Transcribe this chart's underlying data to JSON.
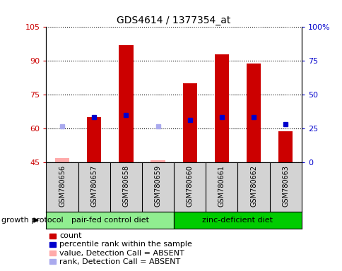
{
  "title": "GDS4614 / 1377354_at",
  "samples": [
    "GSM780656",
    "GSM780657",
    "GSM780658",
    "GSM780659",
    "GSM780660",
    "GSM780661",
    "GSM780662",
    "GSM780663"
  ],
  "count_values": [
    null,
    65,
    97,
    null,
    80,
    93,
    89,
    59
  ],
  "count_absent": [
    47,
    null,
    null,
    46,
    null,
    null,
    null,
    null
  ],
  "rank_values": [
    null,
    65,
    66,
    null,
    64,
    65,
    65,
    62
  ],
  "rank_absent": [
    61,
    null,
    null,
    61,
    null,
    null,
    null,
    null
  ],
  "ylim": [
    45,
    105
  ],
  "yticks": [
    45,
    60,
    75,
    90,
    105
  ],
  "ytick_labels": [
    "45",
    "60",
    "75",
    "90",
    "105"
  ],
  "y2lim": [
    0,
    100
  ],
  "y2ticks": [
    0,
    25,
    50,
    75,
    100
  ],
  "y2tick_labels": [
    "0",
    "25",
    "50",
    "75",
    "100%"
  ],
  "group1_label": "pair-fed control diet",
  "group2_label": "zinc-deficient diet",
  "group1_indices": [
    0,
    1,
    2,
    3
  ],
  "group2_indices": [
    4,
    5,
    6,
    7
  ],
  "bar_width": 0.45,
  "count_color": "#cc0000",
  "rank_color": "#0000cc",
  "count_absent_color": "#ffaaaa",
  "rank_absent_color": "#aaaaee",
  "bg_color": "#d3d3d3",
  "group1_bg": "#90ee90",
  "group2_bg": "#00cc00",
  "plot_bg": "#ffffff",
  "legend_items": [
    {
      "label": "count",
      "color": "#cc0000"
    },
    {
      "label": "percentile rank within the sample",
      "color": "#0000cc"
    },
    {
      "label": "value, Detection Call = ABSENT",
      "color": "#ffaaaa"
    },
    {
      "label": "rank, Detection Call = ABSENT",
      "color": "#aaaaee"
    }
  ],
  "ylabel_color": "#cc0000",
  "y2label_color": "#0000cc",
  "base_value": 45
}
